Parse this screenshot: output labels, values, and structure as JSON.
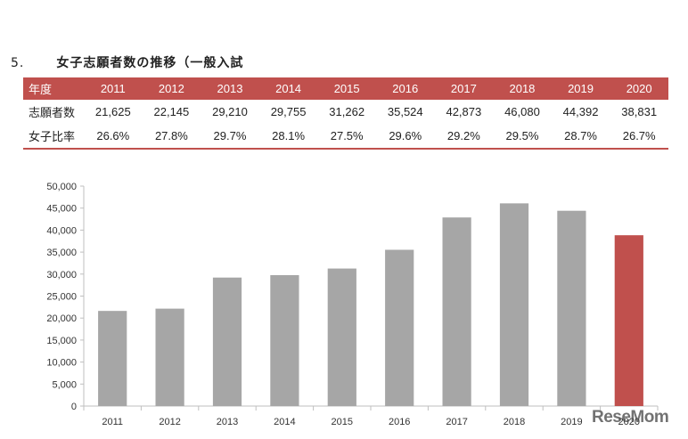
{
  "section": {
    "number": "5.",
    "title": "女子志願者数の推移（一般入試"
  },
  "table": {
    "header_label": "年度",
    "years": [
      "2011",
      "2012",
      "2013",
      "2014",
      "2015",
      "2016",
      "2017",
      "2018",
      "2019",
      "2020"
    ],
    "rows": [
      {
        "label": "志願者数",
        "values": [
          "21,625",
          "22,145",
          "29,210",
          "29,755",
          "31,262",
          "35,524",
          "42,873",
          "46,080",
          "44,392",
          "38,831"
        ]
      },
      {
        "label": "女子比率",
        "values": [
          "26.6%",
          "27.8%",
          "29.7%",
          "28.1%",
          "27.5%",
          "29.6%",
          "29.2%",
          "29.5%",
          "28.7%",
          "26.7%"
        ]
      }
    ]
  },
  "chart_data": {
    "type": "bar",
    "categories": [
      "2011",
      "2012",
      "2013",
      "2014",
      "2015",
      "2016",
      "2017",
      "2018",
      "2019",
      "2020"
    ],
    "values": [
      21625,
      22145,
      29210,
      29755,
      31262,
      35524,
      42873,
      46080,
      44392,
      38831
    ],
    "ylim": [
      0,
      50000
    ],
    "yticks": [
      0,
      5000,
      10000,
      15000,
      20000,
      25000,
      30000,
      35000,
      40000,
      45000,
      50000
    ],
    "ytick_labels": [
      "0",
      "5,000",
      "10,000",
      "15,000",
      "20,000",
      "25,000",
      "30,000",
      "35,000",
      "40,000",
      "45,000",
      "50,000"
    ],
    "colors": {
      "default": "#a6a6a6",
      "highlight": "#c0504d"
    },
    "highlight_index": 9,
    "title": "",
    "xlabel": "",
    "ylabel": ""
  },
  "watermark": {
    "text": "ReseMom"
  }
}
